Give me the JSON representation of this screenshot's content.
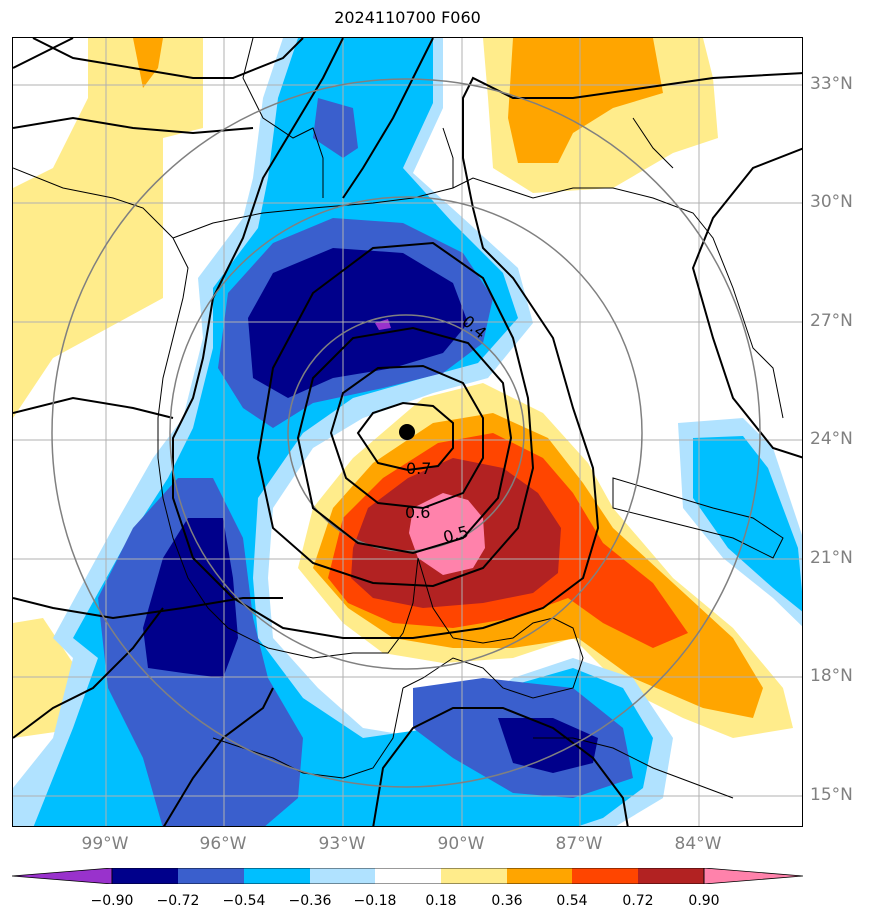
{
  "title": "2024110700 F060",
  "lat_labels": [
    "33°N",
    "30°N",
    "27°N",
    "24°N",
    "21°N",
    "18°N",
    "15°N"
  ],
  "lon_labels": [
    "99°W",
    "96°W",
    "93°W",
    "90°W",
    "87°W",
    "84°W"
  ],
  "contour_labels": [
    "0.4",
    "0.7",
    "0.6",
    "0.5"
  ],
  "storm_center_marker": "black-dot",
  "colorbar": {
    "ticks": [
      "−0.90",
      "−0.72",
      "−0.54",
      "−0.36",
      "−0.18",
      "0.18",
      "0.36",
      "0.54",
      "0.72",
      "0.90"
    ],
    "colors": [
      "#9932cc",
      "#00008b",
      "#3a5fcd",
      "#00bfff",
      "#b0e2ff",
      "#ffffff",
      "#ffec8b",
      "#ffa500",
      "#ff4500",
      "#b22222",
      "#ff82ab"
    ]
  },
  "colors": {
    "neg_extreme": "#9932cc",
    "neg_strong": "#00008b",
    "neg_mid": "#3a5fcd",
    "neg_light": "#00bfff",
    "neg_faint": "#b0e2ff",
    "pos_faint": "#ffec8b",
    "pos_mid": "#ffa500",
    "pos_strong": "#ff4500",
    "pos_vstrong": "#b22222",
    "pos_extreme": "#ff82ab"
  }
}
